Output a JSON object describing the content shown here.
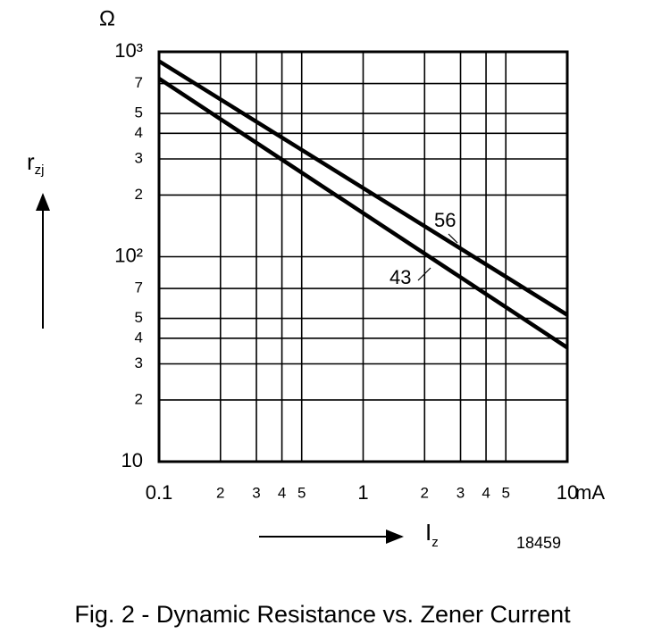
{
  "chart_data": {
    "type": "line",
    "caption": "Fig. 2 - Dynamic Resistance vs. Zener Current",
    "figure_number": "18459",
    "x_label": "I",
    "x_label_sub": "z",
    "x_unit": "mA",
    "y_label": "r",
    "y_label_sub": "zj",
    "y_unit": "Ω",
    "x": [
      0.1,
      10
    ],
    "series": [
      {
        "name": "56",
        "color": "#000000",
        "values": [
          900,
          52
        ]
      },
      {
        "name": "43",
        "color": "#000000",
        "values": [
          740,
          36
        ]
      }
    ],
    "xlog": true,
    "ylog": true,
    "grid": true,
    "xlim": [
      0.1,
      10
    ],
    "ylim": [
      10,
      1000
    ],
    "xticks": [
      {
        "value": 0.1,
        "label": "0.1"
      },
      {
        "value": 0.2,
        "label": "2"
      },
      {
        "value": 0.3,
        "label": "3"
      },
      {
        "value": 0.4,
        "label": "4"
      },
      {
        "value": 0.5,
        "label": "5"
      },
      1,
      {
        "value": 2,
        "label": "2"
      },
      {
        "value": 3,
        "label": "3"
      },
      {
        "value": 4,
        "label": "4"
      },
      {
        "value": 5,
        "label": "5"
      },
      10
    ],
    "yticks": [
      10,
      {
        "value": 20,
        "label": "2"
      },
      {
        "value": 30,
        "label": "3"
      },
      {
        "value": 40,
        "label": "4"
      },
      {
        "value": 50,
        "label": "5"
      },
      {
        "value": 70,
        "label": "7"
      },
      {
        "value": 100,
        "label": "10²"
      },
      {
        "value": 200,
        "label": "2"
      },
      {
        "value": 300,
        "label": "3"
      },
      {
        "value": 400,
        "label": "4"
      },
      {
        "value": 500,
        "label": "5"
      },
      {
        "value": 700,
        "label": "7"
      },
      {
        "value": 1000,
        "label": "10³"
      }
    ]
  }
}
